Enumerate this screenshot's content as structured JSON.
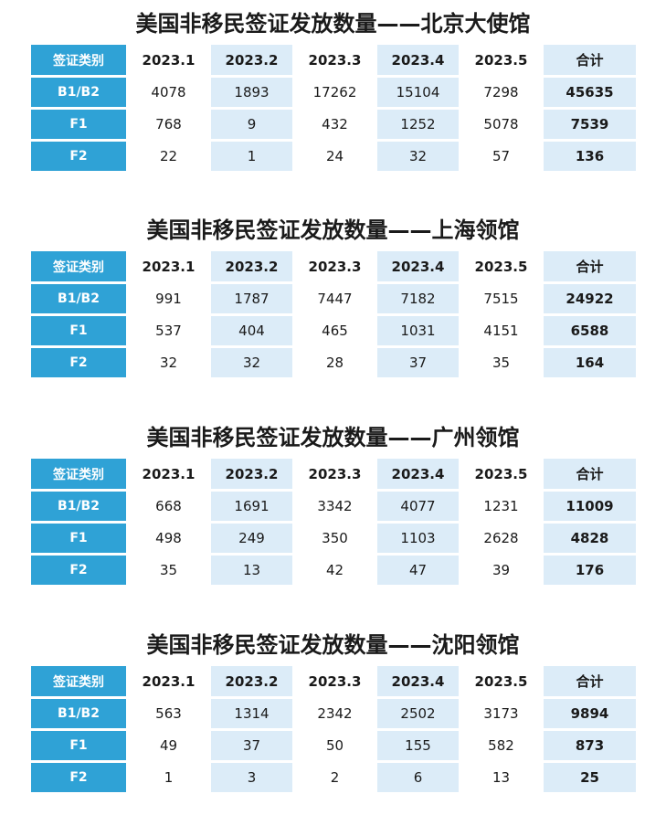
{
  "headers": {
    "category": "签证类别",
    "months": [
      "2023.1",
      "2023.2",
      "2023.3",
      "2023.4",
      "2023.5"
    ],
    "total": "合计"
  },
  "tables": [
    {
      "title": "美国非移民签证发放数量——北京大使馆",
      "rows": [
        {
          "type": "B1/B2",
          "values": [
            "4078",
            "1893",
            "17262",
            "15104",
            "7298"
          ],
          "total": "45635"
        },
        {
          "type": "F1",
          "values": [
            "768",
            "9",
            "432",
            "1252",
            "5078"
          ],
          "total": "7539"
        },
        {
          "type": "F2",
          "values": [
            "22",
            "1",
            "24",
            "32",
            "57"
          ],
          "total": "136"
        }
      ]
    },
    {
      "title": "美国非移民签证发放数量——上海领馆",
      "rows": [
        {
          "type": "B1/B2",
          "values": [
            "991",
            "1787",
            "7447",
            "7182",
            "7515"
          ],
          "total": "24922"
        },
        {
          "type": "F1",
          "values": [
            "537",
            "404",
            "465",
            "1031",
            "4151"
          ],
          "total": "6588"
        },
        {
          "type": "F2",
          "values": [
            "32",
            "32",
            "28",
            "37",
            "35"
          ],
          "total": "164"
        }
      ]
    },
    {
      "title": "美国非移民签证发放数量——广州领馆",
      "rows": [
        {
          "type": "B1/B2",
          "values": [
            "668",
            "1691",
            "3342",
            "4077",
            "1231"
          ],
          "total": "11009"
        },
        {
          "type": "F1",
          "values": [
            "498",
            "249",
            "350",
            "1103",
            "2628"
          ],
          "total": "4828"
        },
        {
          "type": "F2",
          "values": [
            "35",
            "13",
            "42",
            "47",
            "39"
          ],
          "total": "176"
        }
      ]
    },
    {
      "title": "美国非移民签证发放数量——沈阳领馆",
      "rows": [
        {
          "type": "B1/B2",
          "values": [
            "563",
            "1314",
            "2342",
            "2502",
            "3173"
          ],
          "total": "9894"
        },
        {
          "type": "F1",
          "values": [
            "49",
            "37",
            "50",
            "155",
            "582"
          ],
          "total": "873"
        },
        {
          "type": "F2",
          "values": [
            "1",
            "3",
            "2",
            "6",
            "13"
          ],
          "total": "25"
        }
      ]
    }
  ]
}
